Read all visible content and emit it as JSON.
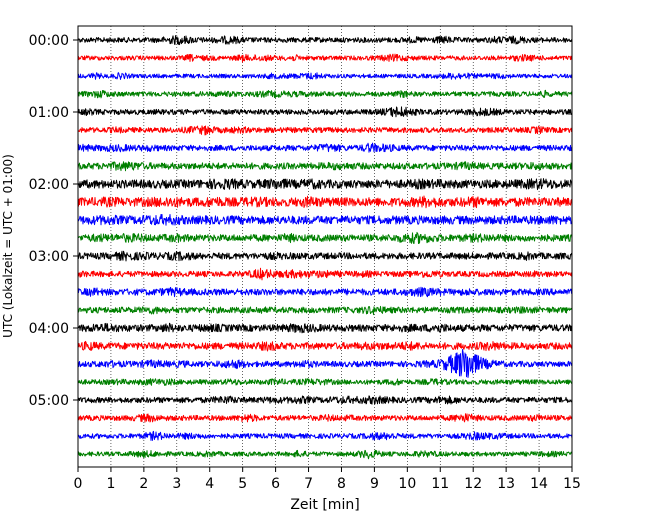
{
  "chart_data": {
    "type": "line",
    "title": "",
    "xlabel": "Zeit  [min]",
    "ylabel": "UTC (Lokalzeit = UTC + 01:00)",
    "xlim": [
      0,
      15
    ],
    "x_ticks": [
      "0",
      "1",
      "2",
      "3",
      "4",
      "5",
      "6",
      "7",
      "8",
      "9",
      "10",
      "11",
      "12",
      "13",
      "14",
      "15"
    ],
    "y_tick_labels": [
      "00:00",
      "01:00",
      "02:00",
      "03:00",
      "04:00",
      "05:00"
    ],
    "grid": "vertical dotted at each minute",
    "trace_interval_minutes": 15,
    "trace_count": 24,
    "color_cycle": [
      "#000000",
      "#ff0000",
      "#0000ff",
      "#008000"
    ],
    "traces": [
      {
        "start": "00:00",
        "amplitude": 2.5
      },
      {
        "start": "00:15",
        "amplitude": 2.2
      },
      {
        "start": "00:30",
        "amplitude": 2.0
      },
      {
        "start": "00:45",
        "amplitude": 2.4
      },
      {
        "start": "01:00",
        "amplitude": 2.6
      },
      {
        "start": "01:15",
        "amplitude": 2.6
      },
      {
        "start": "01:30",
        "amplitude": 2.8
      },
      {
        "start": "01:45",
        "amplitude": 3.2
      },
      {
        "start": "02:00",
        "amplitude": 4.2
      },
      {
        "start": "02:15",
        "amplitude": 4.4
      },
      {
        "start": "02:30",
        "amplitude": 4.2
      },
      {
        "start": "02:45",
        "amplitude": 3.4
      },
      {
        "start": "03:00",
        "amplitude": 3.2
      },
      {
        "start": "03:15",
        "amplitude": 2.8
      },
      {
        "start": "03:30",
        "amplitude": 3.2
      },
      {
        "start": "03:45",
        "amplitude": 3.0
      },
      {
        "start": "04:00",
        "amplitude": 3.4
      },
      {
        "start": "04:15",
        "amplitude": 3.4
      },
      {
        "start": "04:30",
        "amplitude": 2.8,
        "event": {
          "start_min": 10.8,
          "peak_min": 11.8,
          "end_min": 13.0,
          "amplitude": 15
        }
      },
      {
        "start": "04:45",
        "amplitude": 2.4
      },
      {
        "start": "05:00",
        "amplitude": 2.8
      },
      {
        "start": "05:15",
        "amplitude": 2.6
      },
      {
        "start": "05:30",
        "amplitude": 2.4
      },
      {
        "start": "05:45",
        "amplitude": 2.2
      }
    ]
  }
}
